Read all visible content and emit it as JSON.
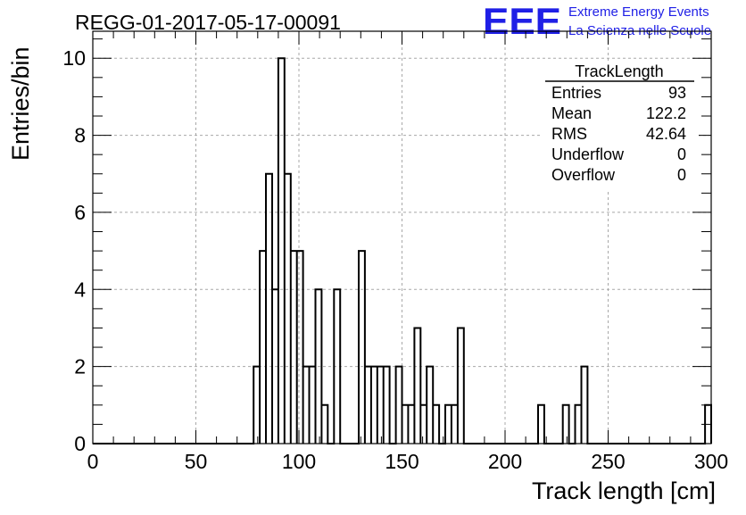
{
  "title": "REGG-01-2017-05-17-00091",
  "logo": {
    "mark": "EEE",
    "line1": "Extreme Energy Events",
    "line2": "La Scienza nelle Scuole",
    "color": "#1f1fe6"
  },
  "stats": {
    "name": "TrackLength",
    "rows": [
      {
        "label": "Entries",
        "value": "93"
      },
      {
        "label": "Mean",
        "value": "122.2"
      },
      {
        "label": "RMS",
        "value": "42.64"
      },
      {
        "label": "Underflow",
        "value": "0"
      },
      {
        "label": "Overflow",
        "value": "0"
      }
    ]
  },
  "chart_data": {
    "type": "bar",
    "histogram": true,
    "xlabel": "Track length [cm]",
    "ylabel": "Entries/bin",
    "xlim": [
      0,
      300
    ],
    "ylim": [
      0,
      10.7
    ],
    "grid": true,
    "bin_width": 3,
    "xticks": [
      0,
      50,
      100,
      150,
      200,
      250,
      300
    ],
    "yticks": [
      0,
      2,
      4,
      6,
      8,
      10
    ],
    "bins": [
      {
        "x0": 78,
        "x1": 81,
        "value": 2
      },
      {
        "x0": 81,
        "x1": 84,
        "value": 5
      },
      {
        "x0": 84,
        "x1": 87,
        "value": 7
      },
      {
        "x0": 87,
        "x1": 90,
        "value": 4
      },
      {
        "x0": 90,
        "x1": 93,
        "value": 10
      },
      {
        "x0": 93,
        "x1": 96,
        "value": 7
      },
      {
        "x0": 96,
        "x1": 99,
        "value": 5
      },
      {
        "x0": 99,
        "x1": 102,
        "value": 5
      },
      {
        "x0": 102,
        "x1": 105,
        "value": 2
      },
      {
        "x0": 105,
        "x1": 108,
        "value": 2
      },
      {
        "x0": 108,
        "x1": 111,
        "value": 4
      },
      {
        "x0": 111,
        "x1": 114,
        "value": 1
      },
      {
        "x0": 117,
        "x1": 120,
        "value": 4
      },
      {
        "x0": 129,
        "x1": 132,
        "value": 5
      },
      {
        "x0": 132,
        "x1": 135,
        "value": 2
      },
      {
        "x0": 135,
        "x1": 138,
        "value": 2
      },
      {
        "x0": 138,
        "x1": 141,
        "value": 2
      },
      {
        "x0": 141,
        "x1": 144,
        "value": 2
      },
      {
        "x0": 147,
        "x1": 150,
        "value": 2
      },
      {
        "x0": 150,
        "x1": 153,
        "value": 1
      },
      {
        "x0": 153,
        "x1": 156,
        "value": 1
      },
      {
        "x0": 156,
        "x1": 159,
        "value": 3
      },
      {
        "x0": 159,
        "x1": 162,
        "value": 1
      },
      {
        "x0": 162,
        "x1": 165,
        "value": 2
      },
      {
        "x0": 165,
        "x1": 168,
        "value": 1
      },
      {
        "x0": 171,
        "x1": 174,
        "value": 1
      },
      {
        "x0": 174,
        "x1": 177,
        "value": 1
      },
      {
        "x0": 177,
        "x1": 180,
        "value": 3
      },
      {
        "x0": 216,
        "x1": 219,
        "value": 1
      },
      {
        "x0": 228,
        "x1": 231,
        "value": 1
      },
      {
        "x0": 234,
        "x1": 237,
        "value": 1
      },
      {
        "x0": 237,
        "x1": 240,
        "value": 2
      },
      {
        "x0": 297,
        "x1": 300,
        "value": 1
      }
    ]
  }
}
